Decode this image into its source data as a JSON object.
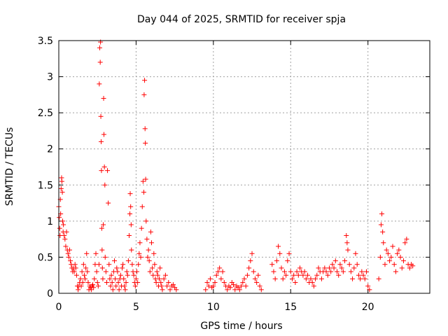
{
  "chart_data": {
    "type": "scatter",
    "title": "Day 044 of 2025, SRMTID for receiver spja",
    "xlabel": "GPS time / hours",
    "ylabel": "SRMTID / TECUs",
    "xlim": [
      0,
      24
    ],
    "ylim": [
      0,
      3.5
    ],
    "xticks": [
      0,
      5,
      10,
      15,
      20
    ],
    "xtick_labels": [
      "0",
      "5",
      "10",
      "15",
      "20"
    ],
    "yticks": [
      0,
      0.5,
      1,
      1.5,
      2,
      2.5,
      3,
      3.5
    ],
    "ytick_labels": [
      "0",
      "0.5",
      "1",
      "1.5",
      "2",
      "2.5",
      "3",
      "3.5"
    ],
    "grid": true,
    "marker": "+",
    "marker_color": "#ff0000",
    "series": [
      {
        "name": "SRMTID",
        "points": [
          [
            0.0,
            1.2
          ],
          [
            0.03,
            1.05
          ],
          [
            0.06,
            0.9
          ],
          [
            0.08,
            0.8
          ],
          [
            0.1,
            1.3
          ],
          [
            0.12,
            1.1
          ],
          [
            0.15,
            1.45
          ],
          [
            0.18,
            1.6
          ],
          [
            0.2,
            1.55
          ],
          [
            0.23,
            1.4
          ],
          [
            0.25,
            1.0
          ],
          [
            0.28,
            0.85
          ],
          [
            0.3,
            0.95
          ],
          [
            0.35,
            0.8
          ],
          [
            0.4,
            0.75
          ],
          [
            0.45,
            0.65
          ],
          [
            0.5,
            0.85
          ],
          [
            0.55,
            0.6
          ],
          [
            0.6,
            0.55
          ],
          [
            0.65,
            0.5
          ],
          [
            0.7,
            0.6
          ],
          [
            0.75,
            0.45
          ],
          [
            0.8,
            0.4
          ],
          [
            0.85,
            0.35
          ],
          [
            0.9,
            0.3
          ],
          [
            0.95,
            0.35
          ],
          [
            1.0,
            0.3
          ],
          [
            1.05,
            0.4
          ],
          [
            1.1,
            0.35
          ],
          [
            1.15,
            0.25
          ],
          [
            1.2,
            0.1
          ],
          [
            1.25,
            0.05
          ],
          [
            1.3,
            0.1
          ],
          [
            1.35,
            0.15
          ],
          [
            1.4,
            0.2
          ],
          [
            1.45,
            0.1
          ],
          [
            1.5,
            0.3
          ],
          [
            1.55,
            0.15
          ],
          [
            1.6,
            0.4
          ],
          [
            1.65,
            0.25
          ],
          [
            1.7,
            0.2
          ],
          [
            1.75,
            0.35
          ],
          [
            1.8,
            0.55
          ],
          [
            1.85,
            0.3
          ],
          [
            1.9,
            0.15
          ],
          [
            1.95,
            0.05
          ],
          [
            2.0,
            0.1
          ],
          [
            2.05,
            0.08
          ],
          [
            2.1,
            0.05
          ],
          [
            2.15,
            0.1
          ],
          [
            2.2,
            0.12
          ],
          [
            2.25,
            0.08
          ],
          [
            2.3,
            0.2
          ],
          [
            2.35,
            0.4
          ],
          [
            2.4,
            0.55
          ],
          [
            2.45,
            0.3
          ],
          [
            2.5,
            0.15
          ],
          [
            2.55,
            0.1
          ],
          [
            2.6,
            0.4
          ],
          [
            2.62,
            2.9
          ],
          [
            2.65,
            3.4
          ],
          [
            2.68,
            3.2
          ],
          [
            2.7,
            3.48
          ],
          [
            2.72,
            2.45
          ],
          [
            2.74,
            2.1
          ],
          [
            2.76,
            1.7
          ],
          [
            2.78,
            0.9
          ],
          [
            2.8,
            0.6
          ],
          [
            2.82,
            0.35
          ],
          [
            2.85,
            0.2
          ],
          [
            2.88,
            0.95
          ],
          [
            2.9,
            2.7
          ],
          [
            2.92,
            2.2
          ],
          [
            2.95,
            1.75
          ],
          [
            2.98,
            1.5
          ],
          [
            3.0,
            0.5
          ],
          [
            3.05,
            0.3
          ],
          [
            3.1,
            0.15
          ],
          [
            3.15,
            1.7
          ],
          [
            3.2,
            1.25
          ],
          [
            3.25,
            0.4
          ],
          [
            3.3,
            0.2
          ],
          [
            3.35,
            0.1
          ],
          [
            3.4,
            0.25
          ],
          [
            3.45,
            0.15
          ],
          [
            3.5,
            0.05
          ],
          [
            3.55,
            0.3
          ],
          [
            3.6,
            0.45
          ],
          [
            3.65,
            0.2
          ],
          [
            3.7,
            0.1
          ],
          [
            3.75,
            0.35
          ],
          [
            3.8,
            0.3
          ],
          [
            3.85,
            0.15
          ],
          [
            3.9,
            0.05
          ],
          [
            3.95,
            0.2
          ],
          [
            4.0,
            0.25
          ],
          [
            4.05,
            0.1
          ],
          [
            4.1,
            0.35
          ],
          [
            4.15,
            0.4
          ],
          [
            4.2,
            0.2
          ],
          [
            4.25,
            0.1
          ],
          [
            4.3,
            0.05
          ],
          [
            4.35,
            0.15
          ],
          [
            4.4,
            0.3
          ],
          [
            4.45,
            0.25
          ],
          [
            4.5,
            0.45
          ],
          [
            4.55,
            0.8
          ],
          [
            4.6,
            1.1
          ],
          [
            4.62,
            1.38
          ],
          [
            4.65,
            1.2
          ],
          [
            4.68,
            0.95
          ],
          [
            4.7,
            0.6
          ],
          [
            4.75,
            0.4
          ],
          [
            4.8,
            0.3
          ],
          [
            4.85,
            0.25
          ],
          [
            4.9,
            0.15
          ],
          [
            4.95,
            0.1
          ],
          [
            5.0,
            0.2
          ],
          [
            5.05,
            0.3
          ],
          [
            5.1,
            0.15
          ],
          [
            5.15,
            0.4
          ],
          [
            5.2,
            0.55
          ],
          [
            5.25,
            0.7
          ],
          [
            5.3,
            0.5
          ],
          [
            5.35,
            0.9
          ],
          [
            5.4,
            1.2
          ],
          [
            5.45,
            1.55
          ],
          [
            5.5,
            1.4
          ],
          [
            5.52,
            2.75
          ],
          [
            5.55,
            2.95
          ],
          [
            5.58,
            2.28
          ],
          [
            5.6,
            2.08
          ],
          [
            5.62,
            1.58
          ],
          [
            5.65,
            1.0
          ],
          [
            5.7,
            0.75
          ],
          [
            5.75,
            0.5
          ],
          [
            5.8,
            0.6
          ],
          [
            5.85,
            0.45
          ],
          [
            5.9,
            0.3
          ],
          [
            5.95,
            0.85
          ],
          [
            6.0,
            0.7
          ],
          [
            6.05,
            0.35
          ],
          [
            6.1,
            0.25
          ],
          [
            6.15,
            0.55
          ],
          [
            6.2,
            0.4
          ],
          [
            6.25,
            0.2
          ],
          [
            6.3,
            0.15
          ],
          [
            6.35,
            0.3
          ],
          [
            6.4,
            0.25
          ],
          [
            6.45,
            0.1
          ],
          [
            6.5,
            0.2
          ],
          [
            6.55,
            0.35
          ],
          [
            6.6,
            0.15
          ],
          [
            6.65,
            0.1
          ],
          [
            6.7,
            0.05
          ],
          [
            6.8,
            0.2
          ],
          [
            6.9,
            0.25
          ],
          [
            7.0,
            0.1
          ],
          [
            7.1,
            0.15
          ],
          [
            7.2,
            0.05
          ],
          [
            7.3,
            0.1
          ],
          [
            7.4,
            0.12
          ],
          [
            7.5,
            0.08
          ],
          [
            7.6,
            0.05
          ],
          [
            9.5,
            0.05
          ],
          [
            9.6,
            0.15
          ],
          [
            9.7,
            0.1
          ],
          [
            9.8,
            0.2
          ],
          [
            9.9,
            0.08
          ],
          [
            10.0,
            0.1
          ],
          [
            10.1,
            0.15
          ],
          [
            10.2,
            0.25
          ],
          [
            10.3,
            0.3
          ],
          [
            10.4,
            0.35
          ],
          [
            10.5,
            0.2
          ],
          [
            10.6,
            0.3
          ],
          [
            10.7,
            0.15
          ],
          [
            10.8,
            0.1
          ],
          [
            10.9,
            0.05
          ],
          [
            11.0,
            0.1
          ],
          [
            11.1,
            0.08
          ],
          [
            11.2,
            0.15
          ],
          [
            11.3,
            0.12
          ],
          [
            11.4,
            0.05
          ],
          [
            11.5,
            0.1
          ],
          [
            11.6,
            0.08
          ],
          [
            11.7,
            0.05
          ],
          [
            11.8,
            0.1
          ],
          [
            11.9,
            0.15
          ],
          [
            12.0,
            0.2
          ],
          [
            12.1,
            0.1
          ],
          [
            12.2,
            0.25
          ],
          [
            12.3,
            0.35
          ],
          [
            12.4,
            0.45
          ],
          [
            12.5,
            0.55
          ],
          [
            12.6,
            0.3
          ],
          [
            12.7,
            0.2
          ],
          [
            12.8,
            0.15
          ],
          [
            12.9,
            0.25
          ],
          [
            13.0,
            0.1
          ],
          [
            13.1,
            0.05
          ],
          [
            13.8,
            0.4
          ],
          [
            13.9,
            0.3
          ],
          [
            14.0,
            0.2
          ],
          [
            14.1,
            0.45
          ],
          [
            14.2,
            0.65
          ],
          [
            14.3,
            0.55
          ],
          [
            14.4,
            0.35
          ],
          [
            14.5,
            0.2
          ],
          [
            14.6,
            0.3
          ],
          [
            14.7,
            0.25
          ],
          [
            14.8,
            0.45
          ],
          [
            14.9,
            0.55
          ],
          [
            15.0,
            0.3
          ],
          [
            15.1,
            0.2
          ],
          [
            15.2,
            0.25
          ],
          [
            15.3,
            0.15
          ],
          [
            15.4,
            0.3
          ],
          [
            15.5,
            0.25
          ],
          [
            15.6,
            0.35
          ],
          [
            15.7,
            0.3
          ],
          [
            15.8,
            0.25
          ],
          [
            15.9,
            0.3
          ],
          [
            16.0,
            0.2
          ],
          [
            16.1,
            0.25
          ],
          [
            16.2,
            0.15
          ],
          [
            16.3,
            0.2
          ],
          [
            16.4,
            0.15
          ],
          [
            16.5,
            0.1
          ],
          [
            16.6,
            0.2
          ],
          [
            16.7,
            0.25
          ],
          [
            16.8,
            0.35
          ],
          [
            16.9,
            0.3
          ],
          [
            17.0,
            0.2
          ],
          [
            17.1,
            0.3
          ],
          [
            17.2,
            0.35
          ],
          [
            17.3,
            0.3
          ],
          [
            17.4,
            0.25
          ],
          [
            17.5,
            0.35
          ],
          [
            17.6,
            0.3
          ],
          [
            17.7,
            0.4
          ],
          [
            17.8,
            0.35
          ],
          [
            17.9,
            0.45
          ],
          [
            18.0,
            0.3
          ],
          [
            18.1,
            0.25
          ],
          [
            18.2,
            0.4
          ],
          [
            18.3,
            0.35
          ],
          [
            18.4,
            0.3
          ],
          [
            18.5,
            0.45
          ],
          [
            18.6,
            0.8
          ],
          [
            18.65,
            0.7
          ],
          [
            18.7,
            0.6
          ],
          [
            18.8,
            0.4
          ],
          [
            18.9,
            0.3
          ],
          [
            19.0,
            0.2
          ],
          [
            19.1,
            0.35
          ],
          [
            19.2,
            0.55
          ],
          [
            19.3,
            0.4
          ],
          [
            19.4,
            0.25
          ],
          [
            19.5,
            0.2
          ],
          [
            19.6,
            0.3
          ],
          [
            19.7,
            0.25
          ],
          [
            19.8,
            0.2
          ],
          [
            19.9,
            0.3
          ],
          [
            20.0,
            0.1
          ],
          [
            20.1,
            0.05
          ],
          [
            20.7,
            0.2
          ],
          [
            20.8,
            0.5
          ],
          [
            20.85,
            0.95
          ],
          [
            20.9,
            1.1
          ],
          [
            20.95,
            0.85
          ],
          [
            21.0,
            0.7
          ],
          [
            21.1,
            0.4
          ],
          [
            21.2,
            0.6
          ],
          [
            21.3,
            0.55
          ],
          [
            21.4,
            0.45
          ],
          [
            21.5,
            0.5
          ],
          [
            21.6,
            0.65
          ],
          [
            21.7,
            0.4
          ],
          [
            21.8,
            0.3
          ],
          [
            21.9,
            0.55
          ],
          [
            22.0,
            0.6
          ],
          [
            22.1,
            0.5
          ],
          [
            22.2,
            0.35
          ],
          [
            22.3,
            0.45
          ],
          [
            22.4,
            0.7
          ],
          [
            22.5,
            0.75
          ],
          [
            22.6,
            0.4
          ],
          [
            22.7,
            0.35
          ],
          [
            22.8,
            0.4
          ],
          [
            22.9,
            0.38
          ]
        ]
      }
    ]
  }
}
